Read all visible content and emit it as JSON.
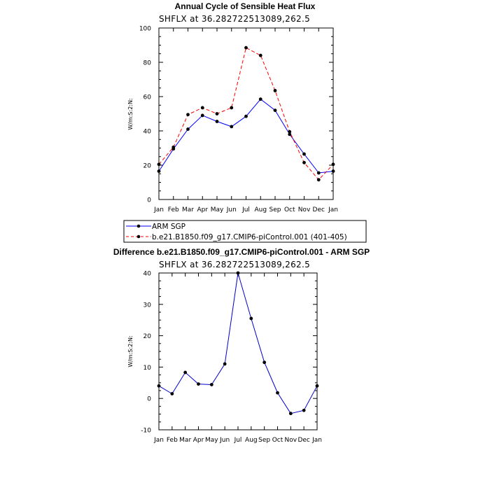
{
  "chart_data": [
    {
      "type": "line",
      "title": "Annual Cycle of Sensible Heat Flux",
      "subtitle": "SHFLX at 36.282722513089,262.5",
      "ylabel": "W/m:S:2:N:",
      "xlabel": "",
      "ylim": [
        0,
        100
      ],
      "yticks": [
        0,
        20,
        40,
        60,
        80,
        100
      ],
      "categories": [
        "Jan",
        "Feb",
        "Mar",
        "Apr",
        "May",
        "Jun",
        "Jul",
        "Aug",
        "Sep",
        "Oct",
        "Nov",
        "Dec",
        "Jan"
      ],
      "series": [
        {
          "name": "ARM SGP",
          "color": "#0000ff",
          "dash": "solid",
          "values": [
            16.5,
            29.5,
            41,
            49,
            45.5,
            42.5,
            48.5,
            58.5,
            52,
            38,
            26.5,
            15.5,
            16.5
          ]
        },
        {
          "name": "b.e21.B1850.f09_g17.CMIP6-piControl.001 (401-405)",
          "color": "#ff0000",
          "dash": "dashed",
          "values": [
            20.5,
            30.5,
            49.5,
            53.5,
            50,
            53.5,
            88.5,
            84,
            63.5,
            39.5,
            21.5,
            11.5,
            20.5
          ]
        }
      ],
      "legend": "below"
    },
    {
      "type": "line",
      "title": "Difference b.e21.B1850.f09_g17.CMIP6-piControl.001 - ARM SGP",
      "subtitle": "SHFLX at 36.282722513089,262.5",
      "ylabel": "W/m:S:2:N:",
      "xlabel": "",
      "ylim": [
        -10,
        40
      ],
      "yticks": [
        -10,
        0,
        10,
        20,
        30,
        40
      ],
      "categories": [
        "Jan",
        "Feb",
        "Mar",
        "Apr",
        "May",
        "Jun",
        "Jul",
        "Aug",
        "Sep",
        "Oct",
        "Nov",
        "Dec",
        "Jan"
      ],
      "series": [
        {
          "name": "Difference",
          "color": "#0000cc",
          "dash": "solid",
          "values": [
            4,
            1.5,
            8.3,
            4.6,
            4.4,
            11,
            40,
            25.5,
            11.5,
            1.8,
            -4.8,
            -3.8,
            4
          ]
        }
      ]
    }
  ]
}
